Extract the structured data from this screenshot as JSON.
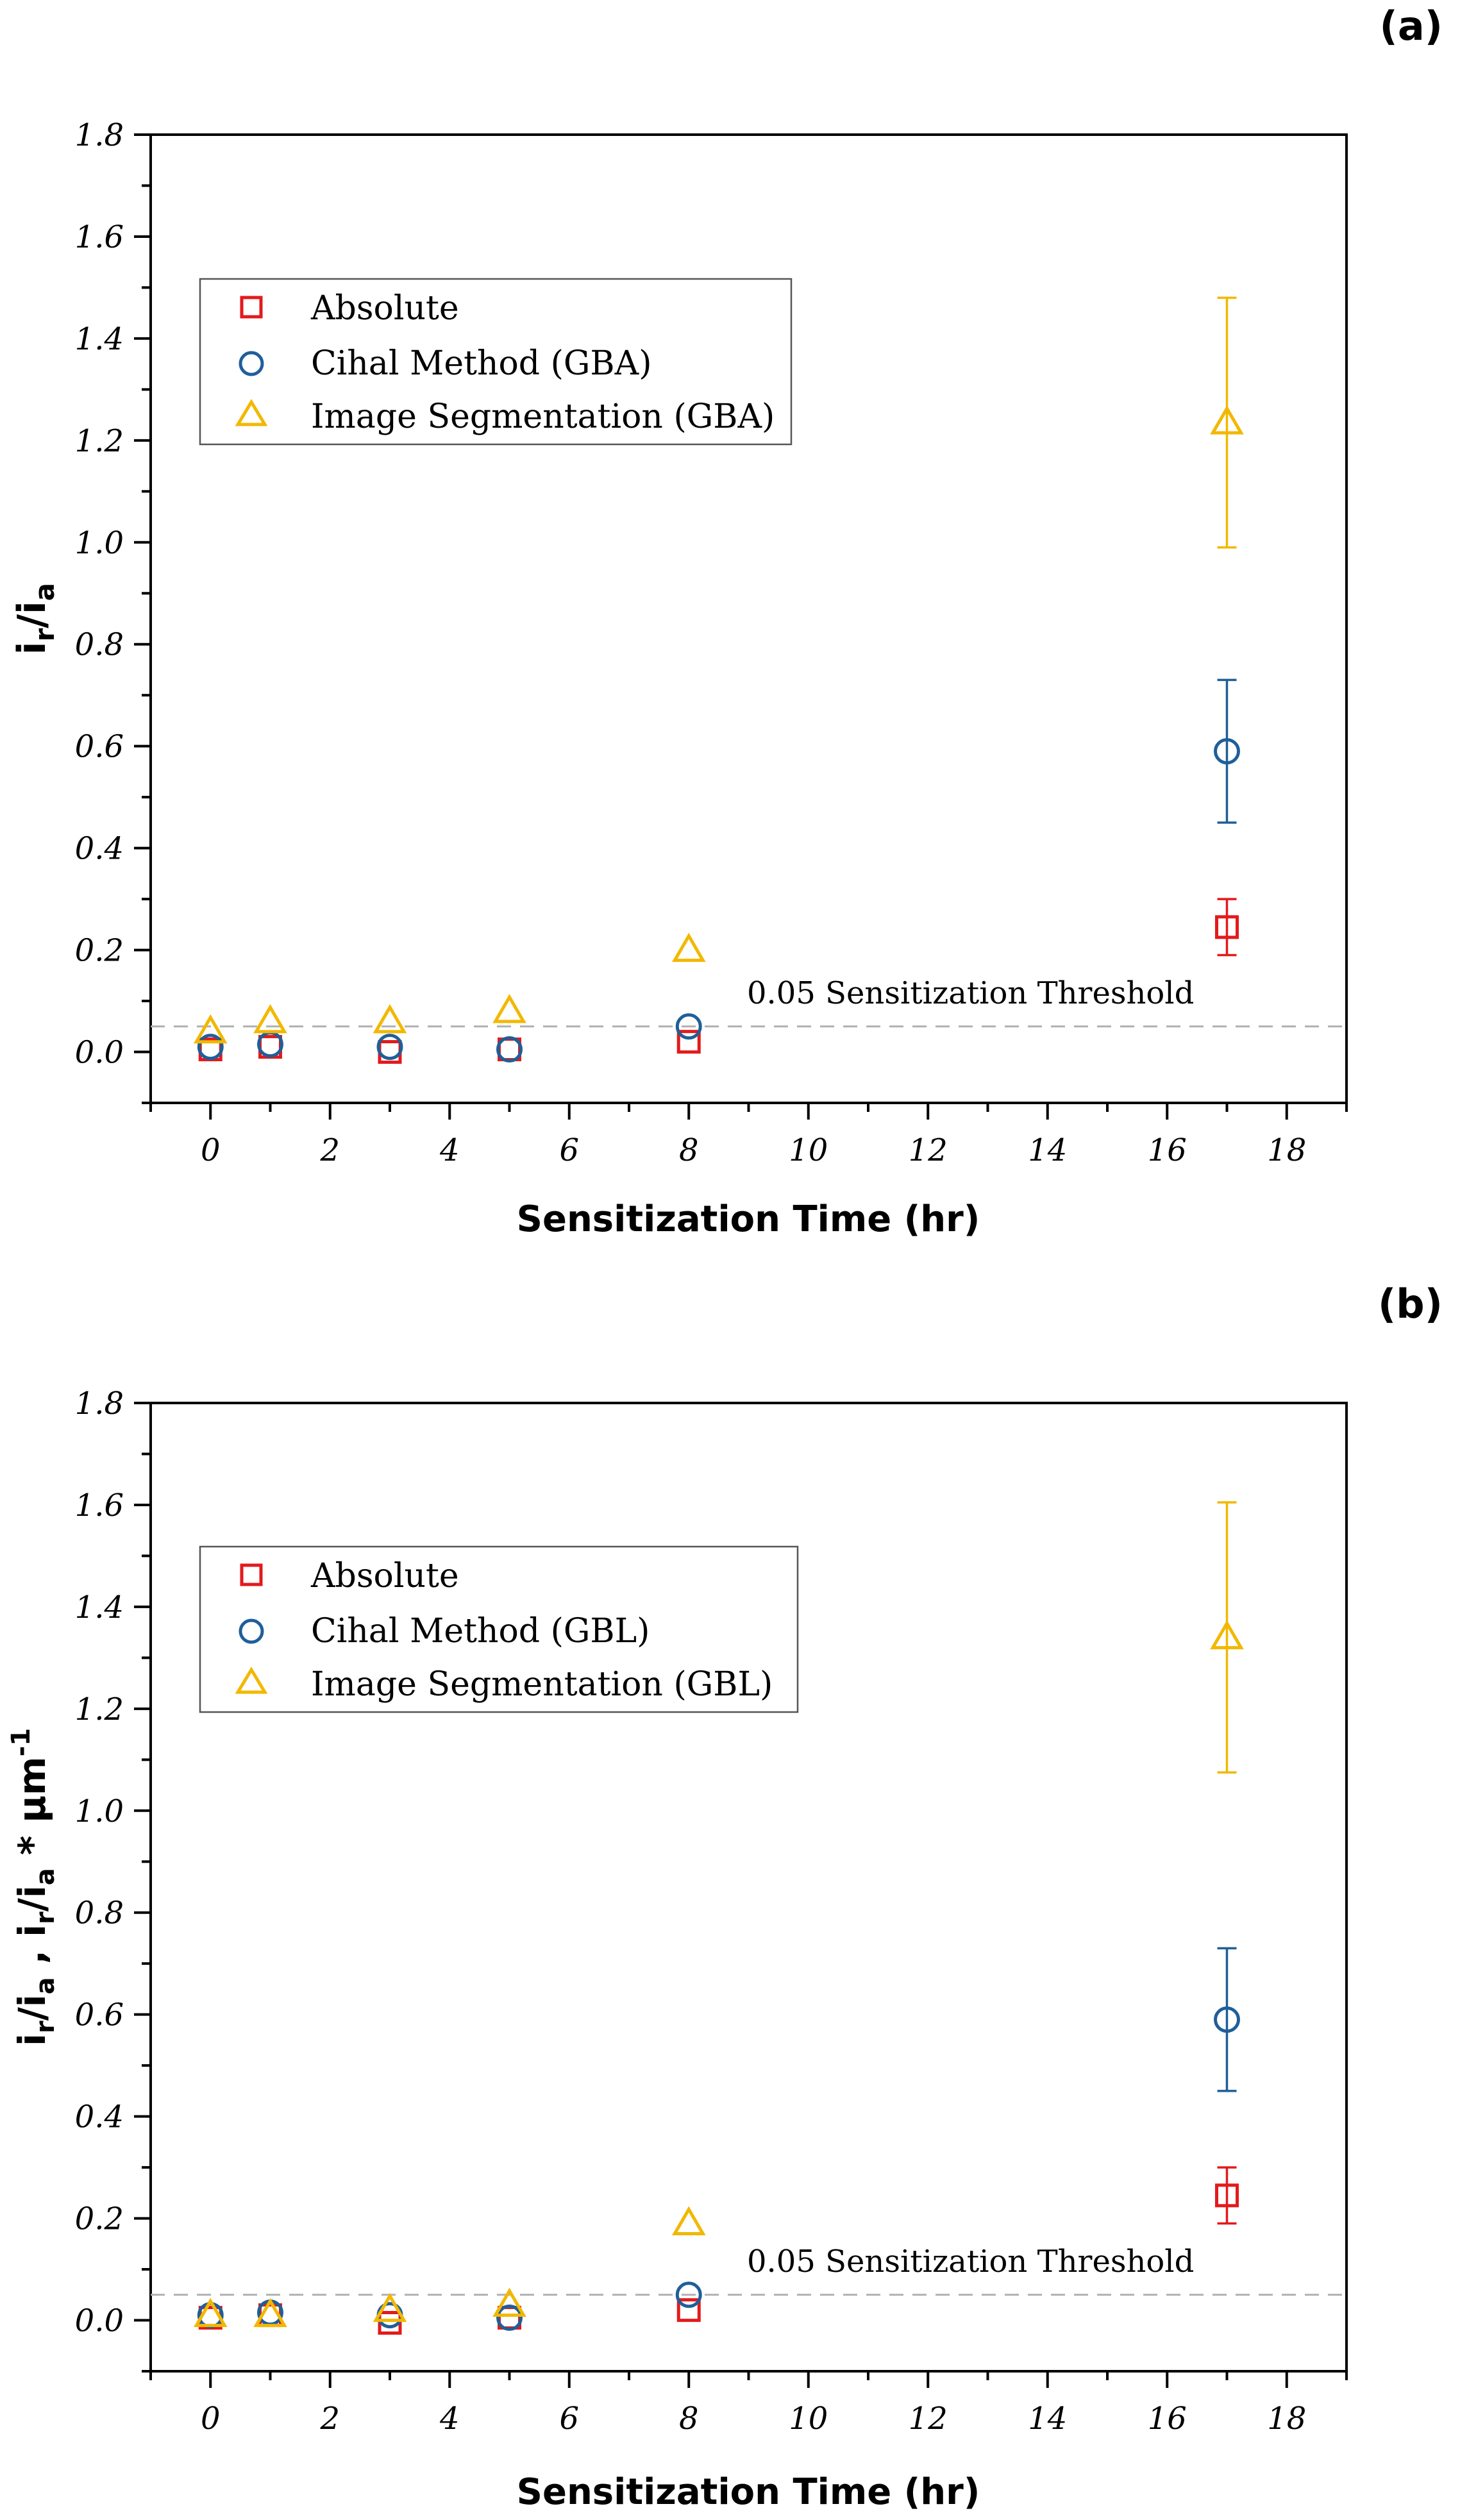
{
  "colors": {
    "absolute": "#e31a1c",
    "cihal": "#1f5f99",
    "segmentation": "#f2b800",
    "threshold": "#b0b0b0",
    "axis": "#000000"
  },
  "chart_data": [
    {
      "type": "scatter",
      "panel_label": "(a)",
      "xlabel": "Sensitization Time (hr)",
      "ylabel_main": "i",
      "ylabel_sub_r": "r",
      "ylabel_slash": "/i",
      "ylabel_sub_a": "a",
      "xlim": [
        -1,
        19
      ],
      "ylim": [
        -0.1,
        1.8
      ],
      "xticks": [
        "0",
        "2",
        "4",
        "6",
        "8",
        "10",
        "12",
        "14",
        "16",
        "18"
      ],
      "yticks": [
        "0.0",
        "0.2",
        "0.4",
        "0.6",
        "0.8",
        "1.0",
        "1.2",
        "1.4",
        "1.6",
        "1.8"
      ],
      "grid": false,
      "legend_position": "upper-left",
      "threshold": {
        "value": 0.05,
        "label": "0.05 Sensitization Threshold"
      },
      "series": [
        {
          "name": "Absolute",
          "marker": "square",
          "x": [
            0,
            1,
            3,
            5,
            8,
            17
          ],
          "y": [
            0.005,
            0.01,
            0.0,
            0.005,
            0.02,
            0.245
          ],
          "err": [
            0,
            0,
            0,
            0,
            0,
            0.055
          ]
        },
        {
          "name": "Cihal Method (GBA)",
          "marker": "circle",
          "x": [
            0,
            1,
            3,
            5,
            8,
            17
          ],
          "y": [
            0.01,
            0.015,
            0.01,
            0.005,
            0.05,
            0.59
          ],
          "err": [
            0,
            0,
            0,
            0,
            0,
            0.14
          ]
        },
        {
          "name": "Image Segmentation (GBA)",
          "marker": "triangle",
          "x": [
            0,
            1,
            3,
            5,
            8,
            17
          ],
          "y": [
            0.04,
            0.06,
            0.06,
            0.08,
            0.2,
            1.235
          ],
          "err": [
            0,
            0,
            0,
            0,
            0,
            0.245
          ]
        }
      ]
    },
    {
      "type": "scatter",
      "panel_label": "(b)",
      "xlabel": "Sensitization Time (hr)",
      "ylabel_main": "i",
      "ylabel_sub_r": "r",
      "ylabel_slash": "/i",
      "ylabel_sub_a": "a",
      "ylabel_sep": " , i",
      "ylabel_sub_r2": "r",
      "ylabel_slash2": "/i",
      "ylabel_sub_a2": "a",
      "ylabel_tail": " * μm",
      "ylabel_sup": "-1",
      "xlim": [
        -1,
        19
      ],
      "ylim": [
        -0.1,
        1.8
      ],
      "xticks": [
        "0",
        "2",
        "4",
        "6",
        "8",
        "10",
        "12",
        "14",
        "16",
        "18"
      ],
      "yticks": [
        "0.0",
        "0.2",
        "0.4",
        "0.6",
        "0.8",
        "1.0",
        "1.2",
        "1.4",
        "1.6",
        "1.8"
      ],
      "grid": false,
      "legend_position": "upper-left",
      "threshold": {
        "value": 0.05,
        "label": "0.05 Sensitization Threshold"
      },
      "series": [
        {
          "name": "Absolute",
          "marker": "square",
          "x": [
            0,
            1,
            3,
            5,
            8,
            17
          ],
          "y": [
            0.005,
            0.01,
            -0.005,
            0.005,
            0.02,
            0.245
          ],
          "err": [
            0,
            0,
            0,
            0,
            0,
            0.055
          ]
        },
        {
          "name": "Cihal Method (GBL)",
          "marker": "circle",
          "x": [
            0,
            1,
            3,
            5,
            8,
            17
          ],
          "y": [
            0.01,
            0.015,
            0.01,
            0.005,
            0.05,
            0.59
          ],
          "err": [
            0,
            0,
            0,
            0,
            0,
            0.14
          ]
        },
        {
          "name": "Image  Segmentation (GBL)",
          "marker": "triangle",
          "x": [
            0,
            1,
            3,
            5,
            8,
            17
          ],
          "y": [
            0.01,
            0.01,
            0.02,
            0.03,
            0.19,
            1.34
          ],
          "err": [
            0,
            0,
            0,
            0,
            0,
            0.265
          ]
        }
      ]
    }
  ]
}
